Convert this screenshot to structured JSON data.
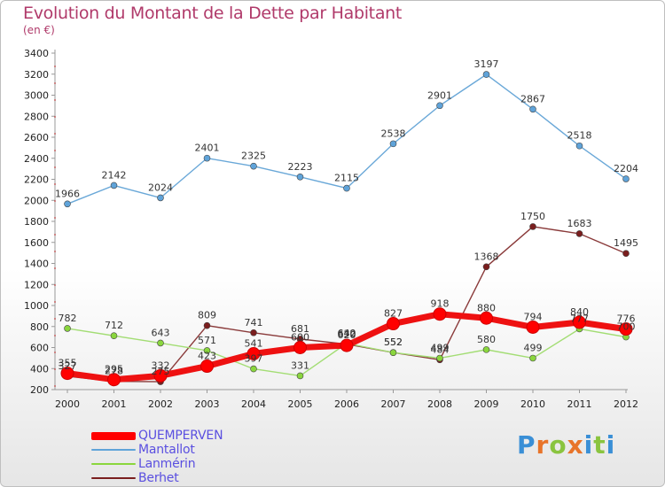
{
  "title": "Evolution du Montant de la Dette par Habitant",
  "subtitle": "(en €)",
  "logo": {
    "text": "Proxiti",
    "colors": [
      "#3a8fd6",
      "#e8742a",
      "#8ac43f",
      "#e8742a",
      "#3a8fd6",
      "#8ac43f",
      "#3a8fd6"
    ]
  },
  "chart_data": {
    "type": "line",
    "title": "Evolution du Montant de la Dette par Habitant",
    "ylabel": "(en €)",
    "xlabel": "",
    "categories": [
      "2000",
      "2001",
      "2002",
      "2003",
      "2004",
      "2005",
      "2006",
      "2007",
      "2008",
      "2009",
      "2010",
      "2011",
      "2012"
    ],
    "ylim": [
      200,
      3400
    ],
    "yticks": [
      200,
      400,
      600,
      800,
      1000,
      1200,
      1400,
      1600,
      1800,
      2000,
      2200,
      2400,
      2600,
      2800,
      3000,
      3200,
      3400
    ],
    "grid": false,
    "legend_position": "bottom-left",
    "series": [
      {
        "name": "QUEMPERVEN",
        "color": "#ff0000",
        "stroke": "#ee1111",
        "width": 7,
        "marker": 7,
        "values": [
          355,
          295,
          332,
          423,
          541,
          600,
          620,
          827,
          918,
          880,
          794,
          840,
          776
        ]
      },
      {
        "name": "Mantallot",
        "color": "#5fa3d9",
        "stroke": "#6aa8d8",
        "width": 1.4,
        "marker": 3.5,
        "values": [
          1966,
          2142,
          2024,
          2401,
          2325,
          2223,
          2115,
          2538,
          2901,
          3197,
          2867,
          2518,
          2204
        ]
      },
      {
        "name": "Lanmérin",
        "color": "#8ad63d",
        "stroke": "#a3dd74",
        "width": 1.4,
        "marker": 3.5,
        "values": [
          782,
          712,
          643,
          571,
          397,
          331,
          640,
          552,
          499,
          580,
          499,
          777,
          700
        ]
      },
      {
        "name": "Berhet",
        "color": "#7a1e1e",
        "stroke": "#8a3a3a",
        "width": 1.4,
        "marker": 3.5,
        "values": [
          327,
          278,
          275,
          809,
          741,
          681,
          632,
          552,
          484,
          1368,
          1750,
          1683,
          1495
        ]
      }
    ]
  }
}
